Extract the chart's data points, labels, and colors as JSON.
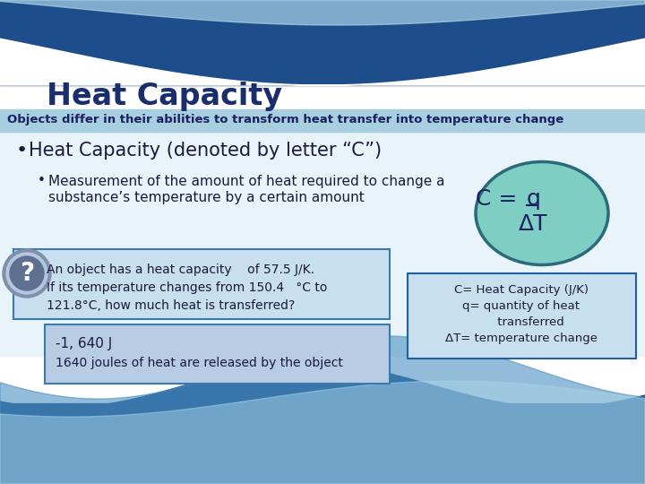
{
  "title": "Heat Capacity",
  "subtitle": "Objects differ in their abilities to transform heat transfer into temperature change",
  "bullet1": "Heat Capacity (denoted by letter “C”)",
  "bullet2a": "Measurement of the amount of heat required to change a",
  "bullet2b": "substance’s temperature by a certain amount",
  "formula1": "C = q",
  "formula2": "ΔT",
  "q_line1": "An object has a heat capacity    of 57.5 J/K.",
  "q_line2": "If its temperature changes from 150.4   °C to",
  "q_line3": "121.8°C, how much heat is transferred?",
  "a_line1": "-1, 640 J",
  "a_line2": "1640 joules of heat are released by the object",
  "d_line1": "C= Heat Capacity (J/K)",
  "d_line2": "q= quantity of heat",
  "d_line3": "     transferred",
  "d_line4": "ΔT= temperature change",
  "dark_blue": "#1e4d8c",
  "light_blue_wave": "#a8d4e8",
  "subtitle_bg": "#a8cfe0",
  "ellipse_fill": "#7ecec4",
  "ellipse_stroke": "#2a6a7a",
  "box_bg": "#c8dff0",
  "box_border": "#3a7ab0",
  "answer_bg": "#b8cce4",
  "answer_border": "#3a7ab0",
  "def_bg": "#c8dff0",
  "def_border": "#2060a0",
  "title_color": "#1a2e6b",
  "subtitle_text_color": "#1a2060",
  "body_text_color": "#1a1a3a",
  "question_mark_outer": "#8090a8",
  "question_mark_inner": "#607090"
}
